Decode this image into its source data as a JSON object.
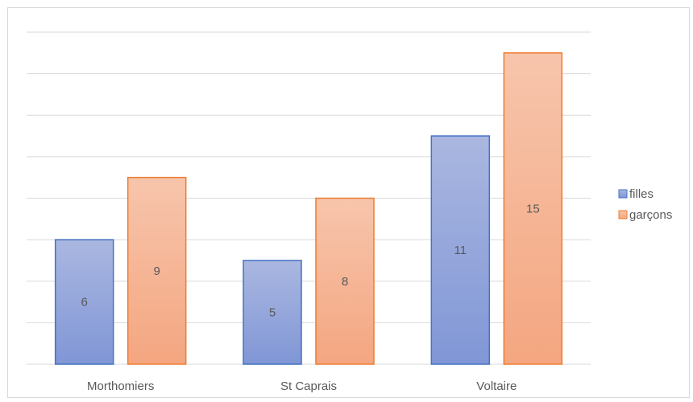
{
  "chart_data": {
    "type": "bar",
    "categories": [
      "Morthomiers",
      "St Caprais",
      "Voltaire"
    ],
    "series": [
      {
        "name": "filles",
        "values": [
          6,
          5,
          11
        ],
        "fill_top": "#aab7e0",
        "fill_bottom": "#8096d6",
        "stroke": "#4472c4"
      },
      {
        "name": "garçons",
        "values": [
          9,
          8,
          15
        ],
        "fill_top": "#f7c5ac",
        "fill_bottom": "#f4a680",
        "stroke": "#ed7d31"
      }
    ],
    "ylim": [
      0,
      16
    ],
    "grid": true,
    "legend": "right",
    "data_labels": true,
    "gridline_color": "#d9d9d9"
  }
}
